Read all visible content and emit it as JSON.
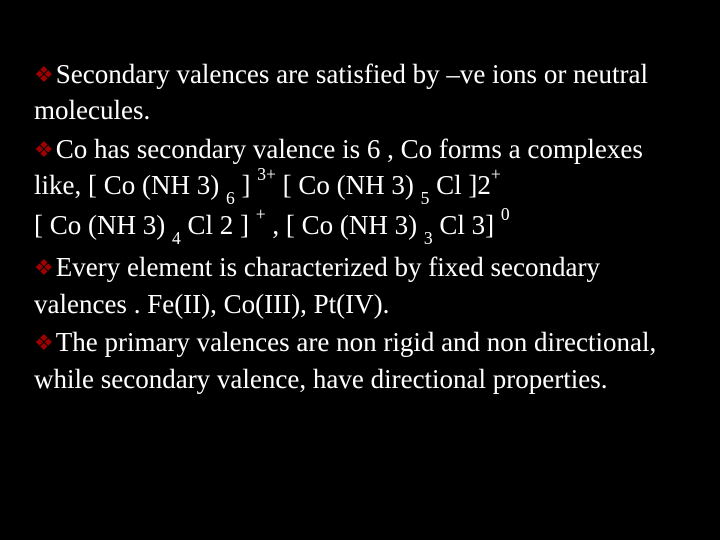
{
  "slide": {
    "background_color": "#000000",
    "text_color": "#ffffff",
    "bullet_color": "#a00000",
    "font_family": "Georgia serif",
    "font_size_pt": 20,
    "bullets": [
      {
        "glyph": "❖",
        "text_before": "Secondary valences are satisfied by  –ve ions or neutral molecules."
      },
      {
        "glyph": "❖",
        "text_before": "Co has secondary valence is 6 , Co forms a complexes like,  [ Co (NH 3) ",
        "sub1": "6",
        "mid1": " ] ",
        "sup1": "3+",
        "mid2": "  [ Co (NH 3) ",
        "sub2": "5",
        "mid3": " Cl ]2",
        "sup2": "+",
        "line2_a": " [ Co (NH 3) ",
        "line2_sub1": "4",
        "line2_b": " Cl 2 ] ",
        "line2_sup1": "+",
        "line2_c": "  , [ Co (NH 3) ",
        "line2_sub2": "3",
        "line2_d": " Cl 3] ",
        "line2_sup2": "0"
      },
      {
        "glyph": "❖",
        "text_before": "Every element is characterized  by fixed secondary  valences . Fe(II), Co(III), Pt(IV)."
      },
      {
        "glyph": "❖",
        "text_before": "The primary valences are non rigid and non directional, while secondary valence, have directional properties."
      }
    ]
  }
}
